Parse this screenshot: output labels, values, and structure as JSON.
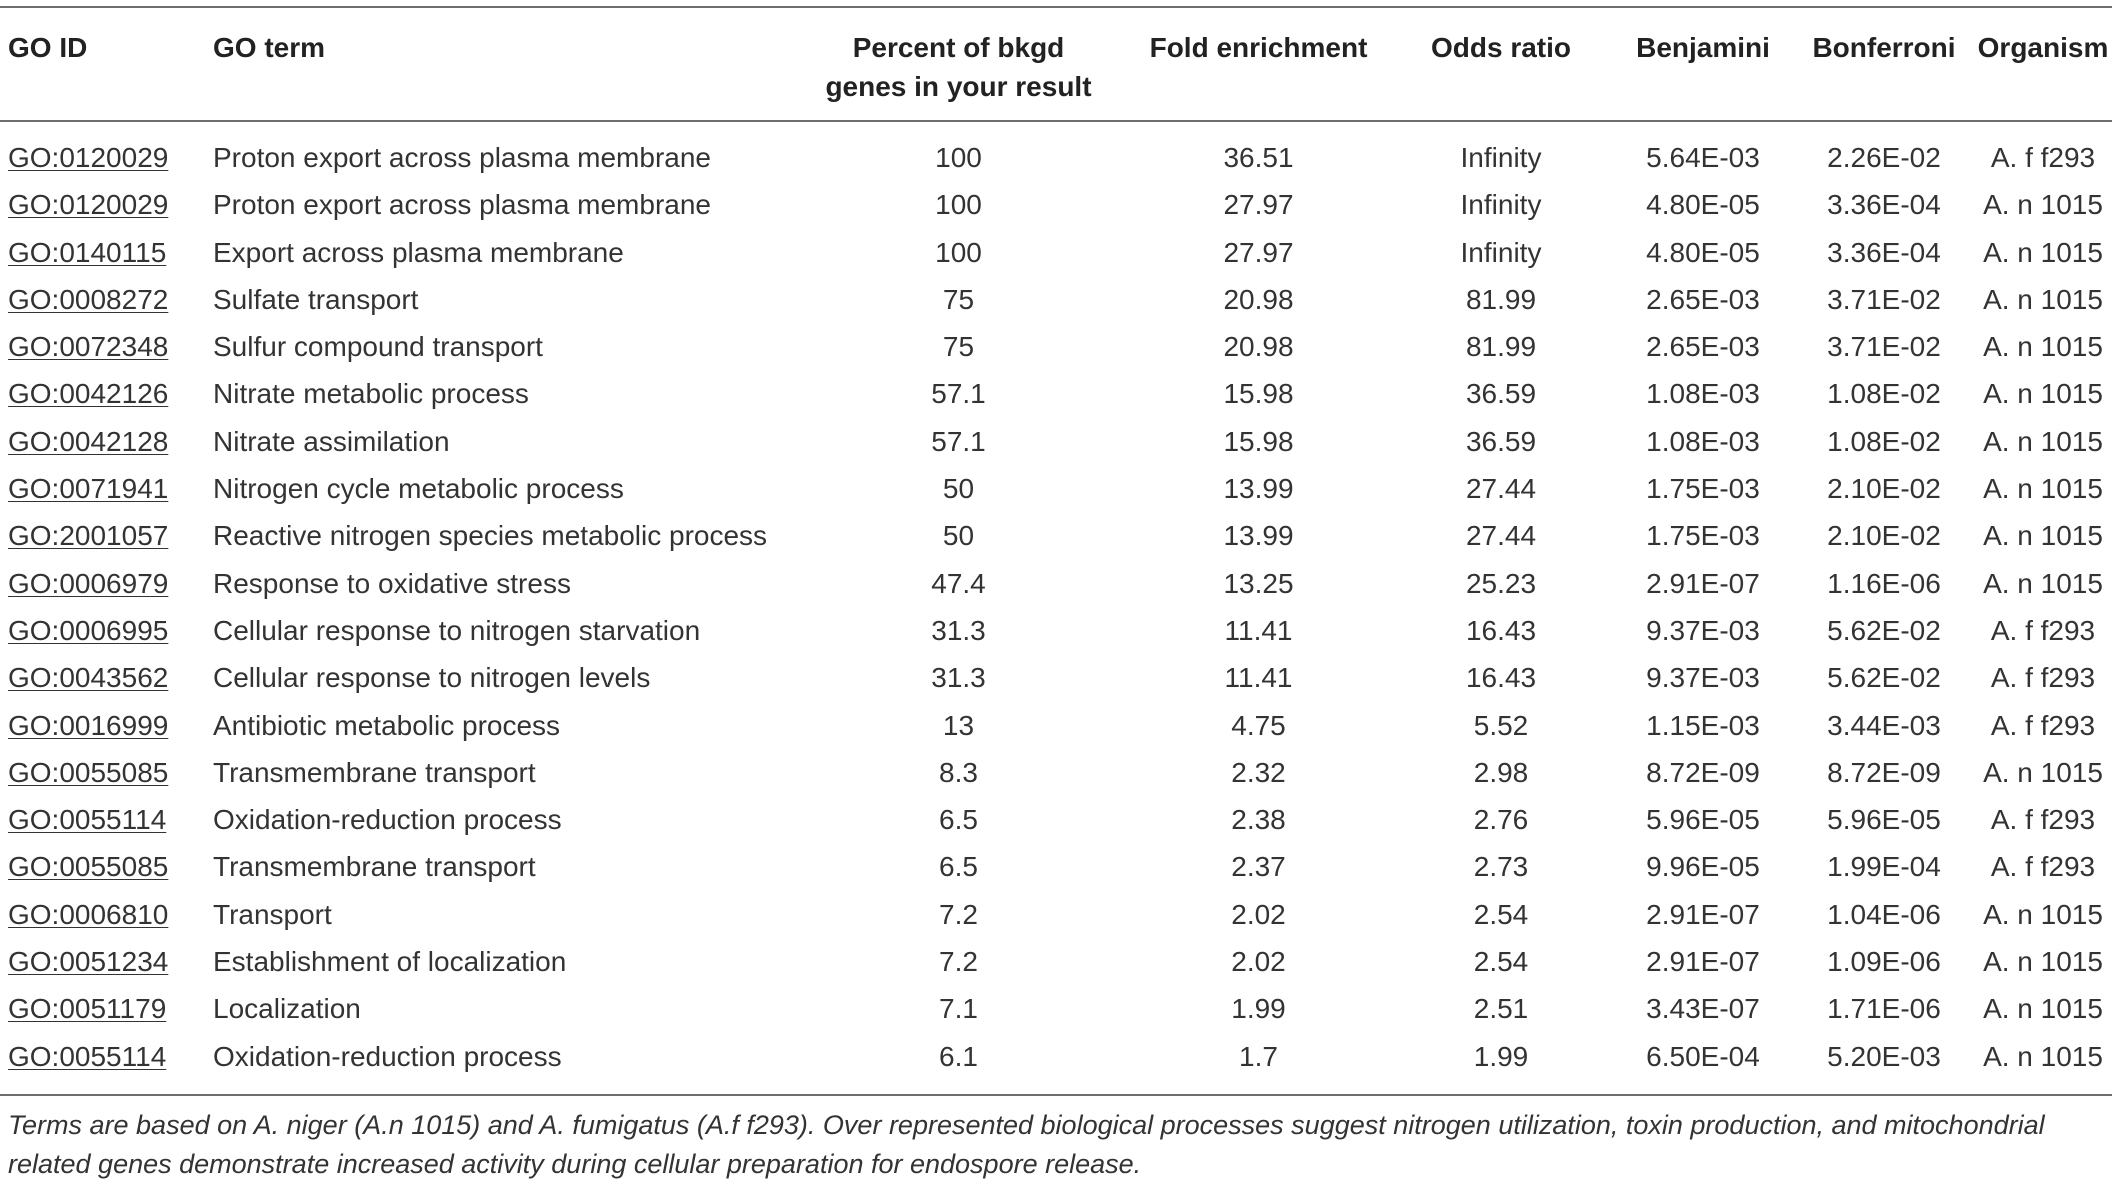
{
  "table": {
    "headers": {
      "go_id": "GO ID",
      "go_term": "GO term",
      "percent_line1": "Percent of bkgd",
      "percent_line2": "genes in your result",
      "fold": "Fold enrichment",
      "odds": "Odds ratio",
      "benjamini": "Benjamini",
      "bonferroni": "Bonferroni",
      "organism": "Organism"
    },
    "rows": [
      {
        "go_id": "GO:0120029",
        "term": "Proton export across plasma membrane",
        "percent": "100",
        "fold": "36.51",
        "odds": "Infinity",
        "benjamini": "5.64E-03",
        "bonferroni": "2.26E-02",
        "organism": "A. f f293"
      },
      {
        "go_id": "GO:0120029",
        "term": "Proton export across plasma membrane",
        "percent": "100",
        "fold": "27.97",
        "odds": "Infinity",
        "benjamini": "4.80E-05",
        "bonferroni": "3.36E-04",
        "organism": "A. n 1015"
      },
      {
        "go_id": "GO:0140115",
        "term": "Export across plasma membrane",
        "percent": "100",
        "fold": "27.97",
        "odds": "Infinity",
        "benjamini": "4.80E-05",
        "bonferroni": "3.36E-04",
        "organism": "A. n 1015"
      },
      {
        "go_id": "GO:0008272",
        "term": "Sulfate transport",
        "percent": "75",
        "fold": "20.98",
        "odds": "81.99",
        "benjamini": "2.65E-03",
        "bonferroni": "3.71E-02",
        "organism": "A. n 1015"
      },
      {
        "go_id": "GO:0072348",
        "term": "Sulfur compound transport",
        "percent": "75",
        "fold": "20.98",
        "odds": "81.99",
        "benjamini": "2.65E-03",
        "bonferroni": "3.71E-02",
        "organism": "A. n 1015"
      },
      {
        "go_id": "GO:0042126",
        "term": "Nitrate metabolic process",
        "percent": "57.1",
        "fold": "15.98",
        "odds": "36.59",
        "benjamini": "1.08E-03",
        "bonferroni": "1.08E-02",
        "organism": "A. n 1015"
      },
      {
        "go_id": "GO:0042128",
        "term": "Nitrate assimilation",
        "percent": "57.1",
        "fold": "15.98",
        "odds": "36.59",
        "benjamini": "1.08E-03",
        "bonferroni": "1.08E-02",
        "organism": "A. n 1015"
      },
      {
        "go_id": "GO:0071941",
        "term": "Nitrogen cycle metabolic process",
        "percent": "50",
        "fold": "13.99",
        "odds": "27.44",
        "benjamini": "1.75E-03",
        "bonferroni": "2.10E-02",
        "organism": "A. n 1015"
      },
      {
        "go_id": "GO:2001057",
        "term": "Reactive nitrogen species metabolic process",
        "percent": "50",
        "fold": "13.99",
        "odds": "27.44",
        "benjamini": "1.75E-03",
        "bonferroni": "2.10E-02",
        "organism": "A. n 1015"
      },
      {
        "go_id": "GO:0006979",
        "term": "Response to oxidative stress",
        "percent": "47.4",
        "fold": "13.25",
        "odds": "25.23",
        "benjamini": "2.91E-07",
        "bonferroni": "1.16E-06",
        "organism": "A. n 1015"
      },
      {
        "go_id": "GO:0006995",
        "term": "Cellular response to nitrogen starvation",
        "percent": "31.3",
        "fold": "11.41",
        "odds": "16.43",
        "benjamini": "9.37E-03",
        "bonferroni": "5.62E-02",
        "organism": "A. f f293"
      },
      {
        "go_id": "GO:0043562",
        "term": "Cellular response to nitrogen levels",
        "percent": "31.3",
        "fold": "11.41",
        "odds": "16.43",
        "benjamini": "9.37E-03",
        "bonferroni": "5.62E-02",
        "organism": "A. f f293"
      },
      {
        "go_id": "GO:0016999",
        "term": "Antibiotic metabolic process",
        "percent": "13",
        "fold": "4.75",
        "odds": "5.52",
        "benjamini": "1.15E-03",
        "bonferroni": "3.44E-03",
        "organism": "A. f f293"
      },
      {
        "go_id": "GO:0055085",
        "term": "Transmembrane transport",
        "percent": "8.3",
        "fold": "2.32",
        "odds": "2.98",
        "benjamini": "8.72E-09",
        "bonferroni": "8.72E-09",
        "organism": "A. n 1015"
      },
      {
        "go_id": "GO:0055114",
        "term": "Oxidation-reduction process",
        "percent": "6.5",
        "fold": "2.38",
        "odds": "2.76",
        "benjamini": "5.96E-05",
        "bonferroni": "5.96E-05",
        "organism": "A. f f293"
      },
      {
        "go_id": "GO:0055085",
        "term": "Transmembrane transport",
        "percent": "6.5",
        "fold": "2.37",
        "odds": "2.73",
        "benjamini": "9.96E-05",
        "bonferroni": "1.99E-04",
        "organism": "A. f f293"
      },
      {
        "go_id": "GO:0006810",
        "term": "Transport",
        "percent": "7.2",
        "fold": "2.02",
        "odds": "2.54",
        "benjamini": "2.91E-07",
        "bonferroni": "1.04E-06",
        "organism": "A. n 1015"
      },
      {
        "go_id": "GO:0051234",
        "term": "Establishment of localization",
        "percent": "7.2",
        "fold": "2.02",
        "odds": "2.54",
        "benjamini": "2.91E-07",
        "bonferroni": "1.09E-06",
        "organism": "A. n 1015"
      },
      {
        "go_id": "GO:0051179",
        "term": "Localization",
        "percent": "7.1",
        "fold": "1.99",
        "odds": "2.51",
        "benjamini": "3.43E-07",
        "bonferroni": "1.71E-06",
        "organism": "A. n 1015"
      },
      {
        "go_id": "GO:0055114",
        "term": "Oxidation-reduction process",
        "percent": "6.1",
        "fold": "1.7",
        "odds": "1.99",
        "benjamini": "6.50E-04",
        "bonferroni": "5.20E-03",
        "organism": "A. n 1015"
      }
    ]
  },
  "footnote": "Terms are based on A. niger (A.n 1015) and A. fumigatus (A.f f293). Over represented biological processes suggest nitrogen utilization, toxin production, and mitochondrial related genes demonstrate increased activity during cellular preparation for endospore release."
}
